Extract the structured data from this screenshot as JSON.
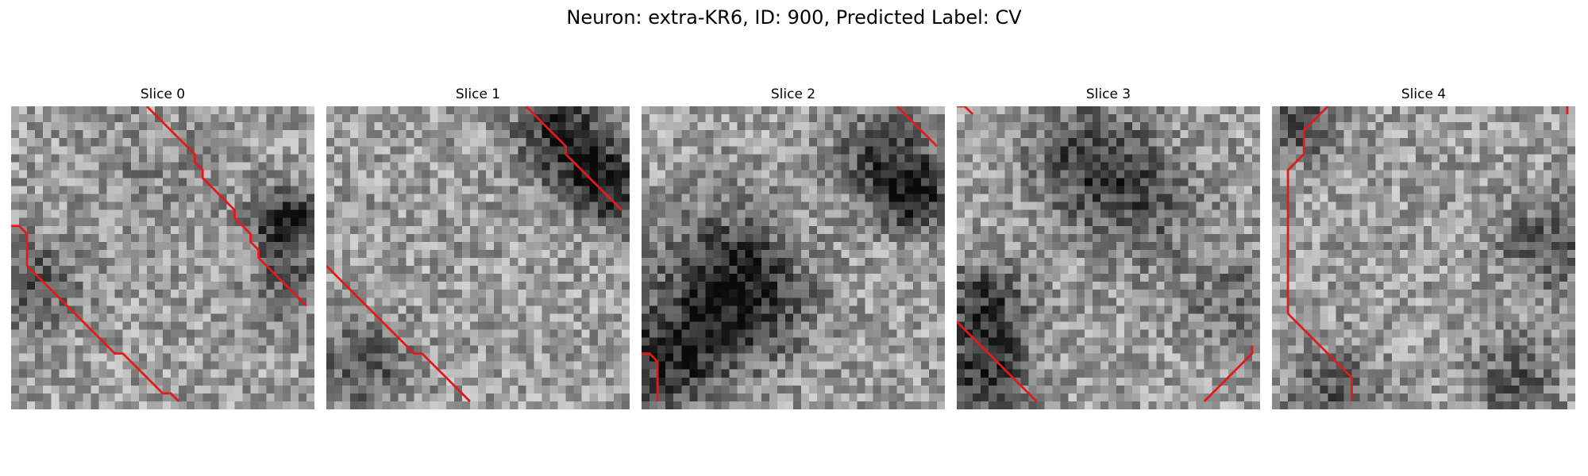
{
  "figure": {
    "title": "Neuron: extra-KR6, ID: 900, Predicted Label: CV"
  },
  "colors": {
    "contour": "#e31a1c",
    "background": "#ffffff"
  },
  "panels": [
    {
      "title": "Slice 0",
      "contours": [
        [
          [
            17,
            0
          ],
          [
            23,
            6
          ],
          [
            23,
            7
          ],
          [
            24,
            8
          ],
          [
            24,
            9
          ],
          [
            25,
            10
          ],
          [
            26,
            11
          ],
          [
            27,
            12
          ],
          [
            28,
            13
          ],
          [
            28,
            14
          ],
          [
            29,
            15
          ],
          [
            30,
            16
          ],
          [
            30,
            17
          ],
          [
            31,
            18
          ],
          [
            31,
            19
          ],
          [
            32,
            20
          ],
          [
            33,
            21
          ],
          [
            34,
            22
          ],
          [
            35,
            23
          ],
          [
            36,
            24
          ],
          [
            37,
            25
          ]
        ],
        [
          [
            0,
            15
          ],
          [
            1,
            15
          ],
          [
            2,
            16
          ],
          [
            2,
            17
          ],
          [
            2,
            18
          ],
          [
            2,
            19
          ],
          [
            2,
            20
          ],
          [
            3,
            21
          ],
          [
            4,
            22
          ],
          [
            5,
            23
          ],
          [
            6,
            24
          ],
          [
            7,
            25
          ],
          [
            8,
            26
          ],
          [
            9,
            27
          ],
          [
            10,
            28
          ],
          [
            11,
            29
          ],
          [
            12,
            30
          ],
          [
            13,
            31
          ],
          [
            14,
            31
          ],
          [
            15,
            32
          ],
          [
            16,
            33
          ],
          [
            17,
            34
          ],
          [
            18,
            35
          ],
          [
            19,
            36
          ],
          [
            20,
            36
          ],
          [
            21,
            37
          ]
        ]
      ],
      "dark_blobs": [
        [
          34,
          14,
          3.0,
          0.55
        ],
        [
          2,
          22,
          4,
          0.3
        ],
        [
          34,
          22,
          3,
          0.25
        ],
        [
          18,
          7,
          6,
          0.08
        ]
      ]
    },
    {
      "title": "Slice 1",
      "contours": [
        [
          [
            25,
            0
          ],
          [
            26,
            1
          ],
          [
            27,
            2
          ],
          [
            28,
            3
          ],
          [
            29,
            4
          ],
          [
            30,
            5
          ],
          [
            30,
            6
          ],
          [
            31,
            7
          ],
          [
            32,
            8
          ],
          [
            33,
            9
          ],
          [
            34,
            10
          ],
          [
            35,
            11
          ],
          [
            36,
            12
          ],
          [
            37,
            13
          ]
        ],
        [
          [
            0,
            20
          ],
          [
            1,
            21
          ],
          [
            2,
            22
          ],
          [
            3,
            23
          ],
          [
            4,
            24
          ],
          [
            5,
            25
          ],
          [
            6,
            26
          ],
          [
            7,
            27
          ],
          [
            8,
            28
          ],
          [
            9,
            29
          ],
          [
            10,
            30
          ],
          [
            11,
            31
          ],
          [
            12,
            31
          ],
          [
            13,
            32
          ],
          [
            14,
            33
          ],
          [
            15,
            34
          ],
          [
            16,
            35
          ],
          [
            17,
            36
          ],
          [
            18,
            37
          ]
        ]
      ],
      "dark_blobs": [
        [
          29,
          3,
          4,
          0.45
        ],
        [
          33,
          8,
          3,
          0.35
        ],
        [
          36,
          11,
          3,
          0.3
        ],
        [
          4,
          32,
          4,
          0.3
        ]
      ]
    },
    {
      "title": "Slice 2",
      "contours": [
        [
          [
            32,
            0
          ],
          [
            33,
            1
          ],
          [
            34,
            2
          ],
          [
            35,
            3
          ],
          [
            36,
            4
          ],
          [
            37,
            5
          ]
        ],
        [
          [
            0,
            31
          ],
          [
            1,
            31
          ],
          [
            2,
            32
          ],
          [
            2,
            33
          ],
          [
            2,
            34
          ],
          [
            2,
            35
          ],
          [
            2,
            36
          ],
          [
            2,
            37
          ]
        ]
      ],
      "dark_blobs": [
        [
          30,
          6,
          4,
          0.4
        ],
        [
          34,
          11,
          3,
          0.45
        ],
        [
          3,
          31,
          5,
          0.45
        ],
        [
          10,
          20,
          6,
          0.35
        ],
        [
          14,
          25,
          5,
          0.25
        ]
      ]
    },
    {
      "title": "Slice 3",
      "contours": [
        [
          [
            0,
            0
          ],
          [
            1,
            0
          ],
          [
            2,
            1
          ]
        ],
        [
          [
            0,
            27
          ],
          [
            1,
            28
          ],
          [
            2,
            29
          ],
          [
            3,
            30
          ],
          [
            4,
            31
          ],
          [
            5,
            32
          ],
          [
            6,
            33
          ],
          [
            7,
            34
          ],
          [
            8,
            35
          ],
          [
            9,
            36
          ],
          [
            10,
            37
          ]
        ],
        [
          [
            31,
            37
          ],
          [
            32,
            36
          ],
          [
            33,
            35
          ],
          [
            34,
            34
          ],
          [
            35,
            33
          ],
          [
            36,
            32
          ],
          [
            37,
            31
          ],
          [
            37,
            30
          ]
        ]
      ],
      "dark_blobs": [
        [
          3,
          25,
          4,
          0.4
        ],
        [
          3,
          34,
          4,
          0.4
        ],
        [
          16,
          6,
          5,
          0.35
        ],
        [
          23,
          12,
          5,
          0.25
        ],
        [
          34,
          24,
          4,
          0.2
        ]
      ]
    },
    {
      "title": "Slice 4",
      "contours": [
        [
          [
            7,
            0
          ],
          [
            6,
            1
          ],
          [
            5,
            2
          ],
          [
            4,
            3
          ],
          [
            4,
            4
          ],
          [
            4,
            5
          ],
          [
            4,
            6
          ],
          [
            3,
            7
          ],
          [
            2,
            8
          ],
          [
            2,
            9
          ],
          [
            2,
            10
          ],
          [
            2,
            11
          ],
          [
            2,
            12
          ],
          [
            2,
            13
          ],
          [
            2,
            14
          ],
          [
            2,
            15
          ],
          [
            2,
            16
          ],
          [
            2,
            17
          ],
          [
            2,
            18
          ],
          [
            2,
            19
          ],
          [
            2,
            20
          ],
          [
            2,
            21
          ],
          [
            2,
            22
          ],
          [
            2,
            23
          ],
          [
            2,
            24
          ],
          [
            2,
            25
          ],
          [
            2,
            26
          ],
          [
            3,
            27
          ],
          [
            4,
            28
          ],
          [
            5,
            29
          ],
          [
            6,
            30
          ],
          [
            7,
            31
          ],
          [
            8,
            32
          ],
          [
            9,
            33
          ],
          [
            10,
            34
          ],
          [
            10,
            35
          ],
          [
            10,
            36
          ],
          [
            10,
            37
          ]
        ],
        [
          [
            37,
            0
          ],
          [
            37,
            1
          ]
        ]
      ],
      "dark_blobs": [
        [
          34,
          17,
          4,
          0.3
        ],
        [
          3,
          2,
          3,
          0.35
        ],
        [
          7,
          36,
          4,
          0.3
        ],
        [
          30,
          34,
          4,
          0.25
        ]
      ]
    }
  ]
}
